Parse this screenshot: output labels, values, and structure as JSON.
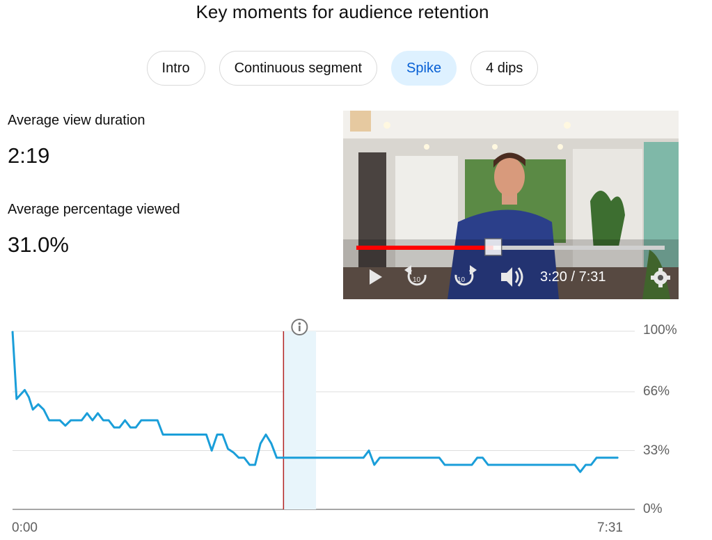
{
  "title": "Key moments for audience retention",
  "chips": [
    {
      "label": "Intro",
      "active": false
    },
    {
      "label": "Continuous segment",
      "active": false
    },
    {
      "label": "Spike",
      "active": true
    },
    {
      "label": "4 dips",
      "active": false
    }
  ],
  "stats": {
    "avg_duration_label": "Average view duration",
    "avg_duration_value": "2:19",
    "avg_pct_label": "Average percentage viewed",
    "avg_pct_value": "31.0%"
  },
  "player": {
    "time": "3:20 / 7:31",
    "progress": 0.444,
    "icons": [
      "play-icon",
      "rewind-10-icon",
      "forward-10-icon",
      "volume-icon",
      "settings-icon"
    ],
    "colors": {
      "progress": "#ff0000",
      "track": "#d0d0d0"
    }
  },
  "chart_data": {
    "type": "line",
    "y_axis": {
      "ticks": [
        "100%",
        "66%",
        "33%",
        "0%"
      ],
      "ylim": [
        0,
        100
      ]
    },
    "x_axis": {
      "start_label": "0:00",
      "end_label": "7:31",
      "xlim_seconds": [
        0,
        451
      ]
    },
    "highlight": {
      "label": "Spike",
      "start_seconds": 200,
      "end_seconds": 224
    },
    "series": [
      {
        "color": "#1a9ed9",
        "x_seconds": [
          0,
          3,
          9,
          12,
          15,
          19,
          23,
          27,
          31,
          35,
          39,
          43,
          47,
          51,
          55,
          59,
          63,
          67,
          71,
          75,
          79,
          83,
          87,
          91,
          95,
          99,
          103,
          107,
          111,
          115,
          119,
          123,
          127,
          131,
          135,
          139,
          143,
          147,
          151,
          155,
          159,
          163,
          167,
          171,
          175,
          179,
          183,
          187,
          191,
          195,
          199,
          200,
          203,
          207,
          211,
          215,
          219,
          223,
          227,
          231,
          235,
          239,
          243,
          247,
          251,
          255,
          259,
          263,
          267,
          271,
          275,
          279,
          283,
          287,
          291,
          295,
          299,
          303,
          307,
          311,
          315,
          319,
          323,
          327,
          331,
          335,
          339,
          343,
          347,
          351,
          355,
          359,
          363,
          367,
          371,
          375,
          379,
          383,
          387,
          391,
          395,
          399,
          403,
          407,
          411,
          415,
          419,
          423,
          427,
          431,
          435,
          439,
          443,
          447
        ],
        "y_percent": [
          100,
          62,
          67,
          63,
          56,
          59,
          56,
          50,
          50,
          50,
          47,
          50,
          50,
          50,
          54,
          50,
          54,
          50,
          50,
          46,
          46,
          50,
          46,
          46,
          50,
          50,
          50,
          50,
          42,
          42,
          42,
          42,
          42,
          42,
          42,
          42,
          42,
          33,
          42,
          42,
          34,
          32,
          29,
          29,
          25,
          25,
          37,
          42,
          37,
          29,
          29,
          29,
          29,
          29,
          29,
          29,
          29,
          29,
          29,
          29,
          29,
          29,
          29,
          29,
          29,
          29,
          29,
          33,
          25,
          29,
          29,
          29,
          29,
          29,
          29,
          29,
          29,
          29,
          29,
          29,
          29,
          25,
          25,
          25,
          25,
          25,
          25,
          29,
          29,
          25,
          25,
          25,
          25,
          25,
          25,
          25,
          25,
          25,
          25,
          25,
          25,
          25,
          25,
          25,
          25,
          25,
          21,
          25,
          25,
          29,
          29,
          29,
          29,
          29
        ]
      }
    ]
  }
}
